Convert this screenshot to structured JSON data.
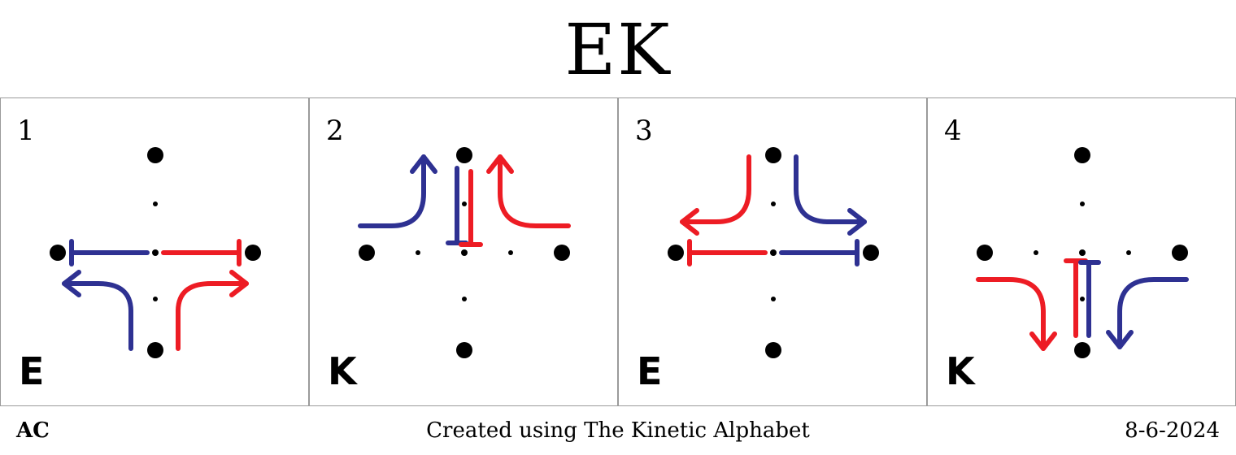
{
  "title": "EK",
  "colors": {
    "blue": "#2e3192",
    "red": "#ed1c24",
    "dot": "#000000",
    "border": "#9a9a9a"
  },
  "cells": [
    {
      "number": "1",
      "letter": "E"
    },
    {
      "number": "2",
      "letter": "K"
    },
    {
      "number": "3",
      "letter": "E"
    },
    {
      "number": "4",
      "letter": "K"
    }
  ],
  "footer": {
    "left": "AC",
    "center": "Created using The Kinetic Alphabet",
    "right": "8-6-2024"
  }
}
